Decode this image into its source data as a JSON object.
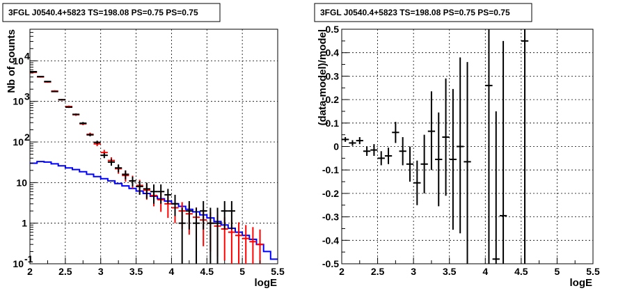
{
  "chart_data": [
    {
      "type": "line",
      "title": "3FGL J0540.4+5823 TS=198.08 PS=0.75 PS=0.75",
      "xlabel": "logE",
      "ylabel": "Nb of counts",
      "xlim": [
        2,
        5.5
      ],
      "ylim": [
        0.1,
        60000
      ],
      "yscale": "log",
      "grid": true,
      "x_ticks": [
        "2",
        "2.5",
        "3",
        "3.5",
        "4",
        "4.5",
        "5",
        "5.5"
      ],
      "y_ticks": [
        {
          "v": 0.1,
          "label": "10",
          "exp": "-1"
        },
        {
          "v": 1,
          "label": "1",
          "exp": ""
        },
        {
          "v": 10,
          "label": "10",
          "exp": ""
        },
        {
          "v": 100,
          "label": "10",
          "exp": "2"
        },
        {
          "v": 1000,
          "label": "10",
          "exp": "3"
        },
        {
          "v": 10000,
          "label": "10",
          "exp": "4"
        }
      ],
      "bin_edges": [
        2.0,
        2.1,
        2.2,
        2.3,
        2.4,
        2.5,
        2.6,
        2.7,
        2.8,
        2.9,
        3.0,
        3.1,
        3.2,
        3.3,
        3.4,
        3.5,
        3.6,
        3.7,
        3.8,
        3.9,
        4.0,
        4.1,
        4.2,
        4.3,
        4.4,
        4.5,
        4.6,
        4.7,
        4.8,
        4.9,
        5.0,
        5.1,
        5.2,
        5.3,
        5.4,
        5.5
      ],
      "series": [
        {
          "kind": "step",
          "color": "#0000ff",
          "values": [
            30,
            33,
            32,
            29,
            26,
            23,
            21,
            18.5,
            16,
            14,
            12.5,
            11,
            9.5,
            8.3,
            7.2,
            6.2,
            5.4,
            4.6,
            4.0,
            3.5,
            3.0,
            2.6,
            2.2,
            1.9,
            1.6,
            1.35,
            1.1,
            0.9,
            0.75,
            0.6,
            0.5,
            0.4,
            0.3,
            0.2,
            0.13
          ]
        },
        {
          "kind": "errorbar",
          "color": "#ff0000",
          "x": [
            2.05,
            2.15,
            2.25,
            2.35,
            2.45,
            2.55,
            2.65,
            2.75,
            2.85,
            2.95,
            3.05,
            3.15,
            3.25,
            3.35,
            3.45,
            3.55,
            3.65,
            3.75,
            3.85,
            3.95,
            4.05,
            4.15,
            4.25,
            4.35,
            4.45,
            4.55,
            4.65,
            4.75,
            4.85,
            4.95,
            5.05,
            5.15,
            5.25
          ],
          "y": [
            5200,
            4000,
            3000,
            1800,
            1100,
            750,
            470,
            280,
            155,
            90,
            55,
            35,
            22,
            15,
            11,
            8.5,
            6.5,
            4.8,
            3.8,
            3.0,
            2.4,
            2.0,
            1.7,
            1.4,
            1.2,
            1.0,
            0.85,
            0.72,
            0.6,
            0.5,
            0.42,
            0.35,
            0.3
          ],
          "ylo": [
            5000,
            3850,
            2880,
            1720,
            1050,
            710,
            440,
            260,
            140,
            79,
            46,
            28,
            16.5,
            10.5,
            7.2,
            5.3,
            3.8,
            2.6,
            1.9,
            1.35,
            1.0,
            0.72,
            0.52,
            0.37,
            0.27,
            0.2,
            0.15,
            0.12,
            0.1,
            0.1,
            0.1,
            0.1,
            0.1
          ],
          "yhi": [
            5400,
            4150,
            3120,
            1880,
            1150,
            790,
            500,
            300,
            170,
            101,
            64,
            42,
            27.5,
            19.5,
            14.8,
            11.7,
            9.2,
            7.0,
            5.7,
            4.65,
            3.8,
            3.3,
            2.9,
            2.45,
            2.15,
            1.85,
            1.6,
            1.4,
            1.2,
            1.05,
            0.9,
            0.8,
            0.7
          ]
        },
        {
          "kind": "errorbar",
          "color": "#000000",
          "x": [
            2.05,
            2.15,
            2.25,
            2.35,
            2.45,
            2.55,
            2.65,
            2.75,
            2.85,
            2.95,
            3.05,
            3.15,
            3.25,
            3.35,
            3.45,
            3.55,
            3.65,
            3.75,
            3.85,
            3.95,
            4.05,
            4.15,
            4.25,
            4.35,
            4.45,
            4.55,
            4.65,
            4.75,
            4.85
          ],
          "y": [
            5400,
            4100,
            3100,
            1750,
            1100,
            720,
            480,
            290,
            150,
            98,
            47,
            32,
            23,
            16,
            11,
            8,
            7,
            6,
            6,
            5,
            3,
            1,
            2,
            1,
            2,
            1,
            1,
            2,
            2
          ],
          "ylo": [
            5330,
            4040,
            3040,
            1710,
            1070,
            690,
            460,
            270,
            138,
            88,
            40,
            26,
            18,
            12,
            8,
            5,
            4,
            3,
            3,
            3,
            1.5,
            0.1,
            0.7,
            0.1,
            0.7,
            0.1,
            0.1,
            0.7,
            0.7
          ],
          "yhi": [
            5470,
            4160,
            3160,
            1790,
            1130,
            750,
            500,
            310,
            162,
            108,
            54,
            38,
            28,
            20,
            14,
            11,
            10,
            9,
            9,
            7,
            5,
            2.4,
            3.5,
            2.4,
            3.5,
            2.4,
            2.4,
            3.5,
            3.5
          ]
        }
      ]
    },
    {
      "type": "scatter",
      "title": "3FGL J0540.4+5823 TS=198.08 PS=0.75 PS=0.75",
      "xlabel": "logE",
      "ylabel": "(data-model)/model",
      "xlim": [
        2,
        5.5
      ],
      "ylim": [
        -0.5,
        0.5
      ],
      "grid": true,
      "x_ticks": [
        "2",
        "2.5",
        "3",
        "3.5",
        "4",
        "4.5",
        "5",
        "5.5"
      ],
      "y_ticks": [
        "-0.5",
        "-0.4",
        "-0.3",
        "-0.2",
        "-0.1",
        "0",
        "0.1",
        "0.2",
        "0.3",
        "0.4",
        "0.5"
      ],
      "color": "#000000",
      "points": [
        {
          "x": 2.05,
          "y": 0.03,
          "ylo": 0.02,
          "yhi": 0.04
        },
        {
          "x": 2.15,
          "y": 0.015,
          "ylo": 0.003,
          "yhi": 0.027
        },
        {
          "x": 2.25,
          "y": 0.025,
          "ylo": 0.01,
          "yhi": 0.04
        },
        {
          "x": 2.35,
          "y": -0.02,
          "ylo": -0.04,
          "yhi": 0.0
        },
        {
          "x": 2.45,
          "y": -0.015,
          "ylo": -0.04,
          "yhi": 0.01
        },
        {
          "x": 2.55,
          "y": -0.05,
          "ylo": -0.08,
          "yhi": -0.02
        },
        {
          "x": 2.65,
          "y": -0.04,
          "ylo": -0.075,
          "yhi": -0.005
        },
        {
          "x": 2.75,
          "y": 0.06,
          "ylo": 0.015,
          "yhi": 0.105
        },
        {
          "x": 2.85,
          "y": -0.02,
          "ylo": -0.08,
          "yhi": 0.04
        },
        {
          "x": 2.95,
          "y": -0.075,
          "ylo": -0.15,
          "yhi": 0.0
        },
        {
          "x": 3.05,
          "y": -0.155,
          "ylo": -0.25,
          "yhi": -0.06
        },
        {
          "x": 3.15,
          "y": -0.075,
          "ylo": -0.2,
          "yhi": 0.05
        },
        {
          "x": 3.25,
          "y": 0.065,
          "ylo": -0.1,
          "yhi": 0.235
        },
        {
          "x": 3.35,
          "y": -0.055,
          "ylo": -0.255,
          "yhi": 0.145
        },
        {
          "x": 3.45,
          "y": 0.04,
          "ylo": -0.21,
          "yhi": 0.29
        },
        {
          "x": 3.55,
          "y": -0.055,
          "ylo": -0.355,
          "yhi": 0.245
        },
        {
          "x": 3.65,
          "y": 0.0,
          "ylo": -0.37,
          "yhi": 0.38
        },
        {
          "x": 3.75,
          "y": -0.065,
          "ylo": -0.5,
          "yhi": 0.36
        },
        {
          "x": 4.05,
          "y": 0.26,
          "ylo": -0.5,
          "yhi": 0.5
        },
        {
          "x": 4.15,
          "y": -0.48,
          "ylo": -0.5,
          "yhi": 0.15
        },
        {
          "x": 4.25,
          "y": -0.295,
          "ylo": -0.5,
          "yhi": 0.45
        },
        {
          "x": 4.55,
          "y": 0.45,
          "ylo": -0.5,
          "yhi": 0.5
        }
      ]
    }
  ]
}
